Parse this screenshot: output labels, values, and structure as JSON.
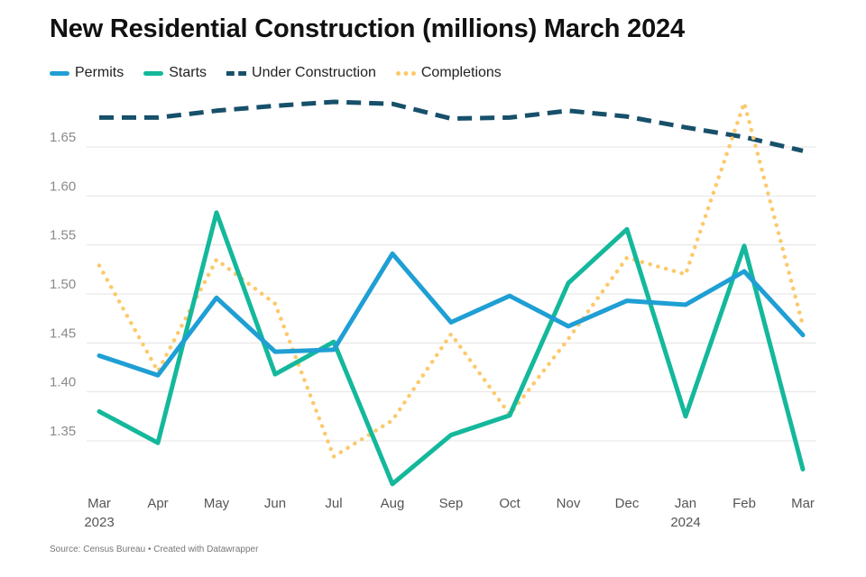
{
  "chart_data": {
    "type": "line",
    "title": "New Residential Construction (millions) March 2024",
    "xlabel": "",
    "ylabel": "",
    "categories": [
      "Mar",
      "Apr",
      "May",
      "Jun",
      "Jul",
      "Aug",
      "Sep",
      "Oct",
      "Nov",
      "Dec",
      "Jan",
      "Feb",
      "Mar"
    ],
    "year_labels": [
      "2023",
      "",
      "",
      "",
      "",
      "",
      "",
      "",
      "",
      "",
      "2024",
      "",
      ""
    ],
    "ylim": [
      1.3,
      1.7
    ],
    "yticks": [
      1.35,
      1.4,
      1.45,
      1.5,
      1.55,
      1.6,
      1.65
    ],
    "ytick_labels": [
      "1.35",
      "1.40",
      "1.45",
      "1.50",
      "1.55",
      "1.60",
      "1.65"
    ],
    "grid": true,
    "legend_position": "top-left",
    "series": [
      {
        "name": "Permits",
        "color": "#1f9fd4",
        "style": "solid",
        "values": [
          1.437,
          1.417,
          1.496,
          1.441,
          1.443,
          1.541,
          1.471,
          1.498,
          1.467,
          1.493,
          1.489,
          1.523,
          1.458
        ]
      },
      {
        "name": "Starts",
        "color": "#14b89b",
        "style": "solid",
        "values": [
          1.38,
          1.348,
          1.583,
          1.418,
          1.451,
          1.306,
          1.356,
          1.376,
          1.511,
          1.566,
          1.375,
          1.549,
          1.321
        ]
      },
      {
        "name": "Under Construction",
        "color": "#17506a",
        "style": "dashed",
        "values": [
          1.68,
          1.68,
          1.687,
          1.692,
          1.696,
          1.694,
          1.679,
          1.68,
          1.687,
          1.681,
          1.67,
          1.66,
          1.646
        ]
      },
      {
        "name": "Completions",
        "color": "#fcc96b",
        "style": "dotted",
        "values": [
          1.529,
          1.421,
          1.535,
          1.49,
          1.334,
          1.371,
          1.459,
          1.377,
          1.454,
          1.537,
          1.52,
          1.695,
          1.468
        ]
      }
    ]
  },
  "source_text": "Source: Census Bureau • Created with Datawrapper"
}
